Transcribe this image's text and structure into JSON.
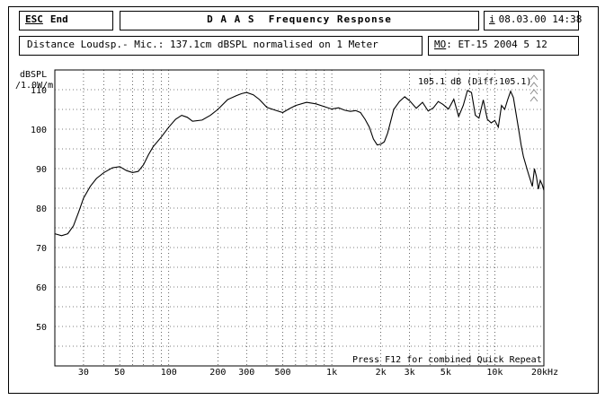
{
  "header": {
    "esc_label": "ESC",
    "end_label": "End",
    "title": "D A A S  Frequency Response",
    "info_icon": "i",
    "datetime": "08.03.00 14:38"
  },
  "info": {
    "description": "Distance Loudsp.- Mic.: 137.1cm dBSPL normalised on 1 Meter",
    "mo_prefix": "MO",
    "mo_value": ": ET-15 2004 5 12"
  },
  "chart_data": {
    "type": "line",
    "ylabel_line1": "dBSPL",
    "ylabel_line2": "/1.0W/m",
    "xscale": "log",
    "xlim": [
      20,
      20000
    ],
    "ylim": [
      40,
      115
    ],
    "yticks": [
      50,
      60,
      70,
      80,
      90,
      100,
      110
    ],
    "xtick_labels": [
      {
        "value": 30,
        "label": "30"
      },
      {
        "value": 50,
        "label": "50"
      },
      {
        "value": 100,
        "label": "100"
      },
      {
        "value": 200,
        "label": "200"
      },
      {
        "value": 300,
        "label": "300"
      },
      {
        "value": 500,
        "label": "500"
      },
      {
        "value": 1000,
        "label": "1k"
      },
      {
        "value": 2000,
        "label": "2k"
      },
      {
        "value": 3000,
        "label": "3k"
      },
      {
        "value": 5000,
        "label": "5k"
      },
      {
        "value": 10000,
        "label": "10k"
      },
      {
        "value": 20000,
        "label": "20kHz"
      }
    ],
    "grid": true,
    "annotation": "105.1 dB (Diff:105.1)",
    "footer_note": "Press F12 for combined Quick Repeat",
    "series": [
      {
        "x": [
          20,
          22,
          24,
          26,
          28,
          30,
          33,
          36,
          40,
          45,
          50,
          55,
          60,
          65,
          70,
          75,
          80,
          90,
          100,
          110,
          120,
          130,
          140,
          160,
          180,
          200,
          230,
          260,
          280,
          300,
          330,
          360,
          400,
          450,
          500,
          550,
          600,
          700,
          800,
          900,
          1000,
          1100,
          1200,
          1300,
          1400,
          1500,
          1600,
          1700,
          1800,
          1900,
          2000,
          2100,
          2200,
          2400,
          2600,
          2800,
          3000,
          3300,
          3600,
          3900,
          4200,
          4500,
          4800,
          5200,
          5600,
          6000,
          6400,
          6800,
          7200,
          7600,
          8000,
          8500,
          9000,
          9500,
          10000,
          10500,
          11000,
          11500,
          12000,
          12500,
          13000,
          13500,
          14000,
          14500,
          15000,
          16000,
          17000,
          17500,
          18000,
          18500,
          19000,
          19500,
          20000
        ],
        "y": [
          73.5,
          73.0,
          73.5,
          75.5,
          79,
          82.5,
          85.5,
          87.5,
          89,
          90.2,
          90.5,
          89.5,
          89,
          89.3,
          91,
          93.5,
          95.5,
          98,
          100.5,
          102.5,
          103.5,
          103,
          102,
          102.3,
          103.5,
          105,
          107.5,
          108.5,
          109,
          109.3,
          108.7,
          107.5,
          105.5,
          104.8,
          104.2,
          105.2,
          106,
          106.8,
          106.4,
          105.7,
          105.1,
          105.4,
          104.8,
          104.5,
          104.7,
          104.2,
          102.5,
          100.5,
          97.5,
          96.0,
          96.2,
          96.8,
          99,
          105,
          107,
          108.2,
          107.2,
          105.3,
          106.8,
          104.6,
          105.4,
          107,
          106.3,
          105.1,
          107.6,
          103.2,
          106,
          109.8,
          109.3,
          103.5,
          102.8,
          107.4,
          102.5,
          101.6,
          102.2,
          100.5,
          106,
          105,
          107.5,
          109.6,
          108,
          104,
          100,
          96,
          93,
          89,
          85.5,
          90,
          88,
          84.8,
          87,
          86,
          84.5
        ]
      }
    ]
  }
}
